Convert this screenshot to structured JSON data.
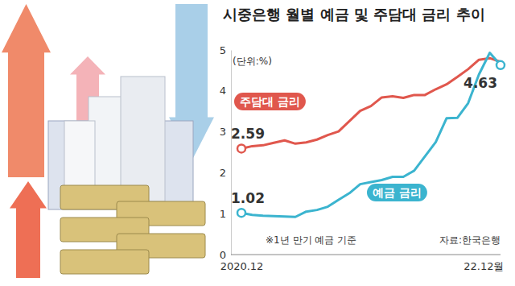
{
  "chart_data": {
    "type": "line",
    "title": "시중은행 월별 예금 및 주담대 금리 추이",
    "y_label": "(단위:%)",
    "note": "※1년 만기 예금 기준",
    "source": "자료:한국은행",
    "categories": [
      "2020.12",
      null,
      null,
      null,
      null,
      null,
      null,
      null,
      null,
      null,
      null,
      null,
      null,
      null,
      null,
      null,
      null,
      null,
      null,
      null,
      null,
      null,
      null,
      null,
      "22.12월"
    ],
    "series": [
      {
        "name": "주담대 금리",
        "color": "#e0574d",
        "values": [
          2.59,
          2.65,
          2.67,
          2.73,
          2.79,
          2.71,
          2.74,
          2.81,
          2.92,
          3.01,
          3.26,
          3.51,
          3.63,
          3.84,
          3.87,
          3.83,
          3.9,
          3.9,
          4.04,
          4.16,
          4.34,
          4.53,
          4.76,
          4.8,
          4.71
        ],
        "value_labels": [
          "2.59",
          null,
          null,
          null,
          null,
          null,
          null,
          null,
          null,
          null,
          null,
          null,
          null,
          null,
          null,
          null,
          null,
          null,
          null,
          null,
          null,
          null,
          null,
          null,
          null
        ]
      },
      {
        "name": "예금 금리",
        "color": "#3bb4cf",
        "values": [
          1.02,
          0.97,
          0.95,
          0.94,
          0.93,
          0.92,
          1.05,
          1.09,
          1.17,
          1.34,
          1.5,
          1.72,
          1.77,
          1.82,
          1.9,
          1.9,
          2.05,
          2.4,
          2.75,
          3.33,
          3.34,
          3.7,
          4.4,
          4.93,
          4.63
        ],
        "value_labels": [
          "1.02",
          null,
          null,
          null,
          null,
          null,
          null,
          null,
          null,
          null,
          null,
          null,
          null,
          null,
          null,
          null,
          null,
          null,
          null,
          null,
          null,
          null,
          null,
          null,
          "4.63"
        ]
      }
    ],
    "ylim": [
      0,
      5
    ],
    "yticks": [
      0,
      1,
      2,
      3,
      4,
      5
    ],
    "grid": false
  }
}
